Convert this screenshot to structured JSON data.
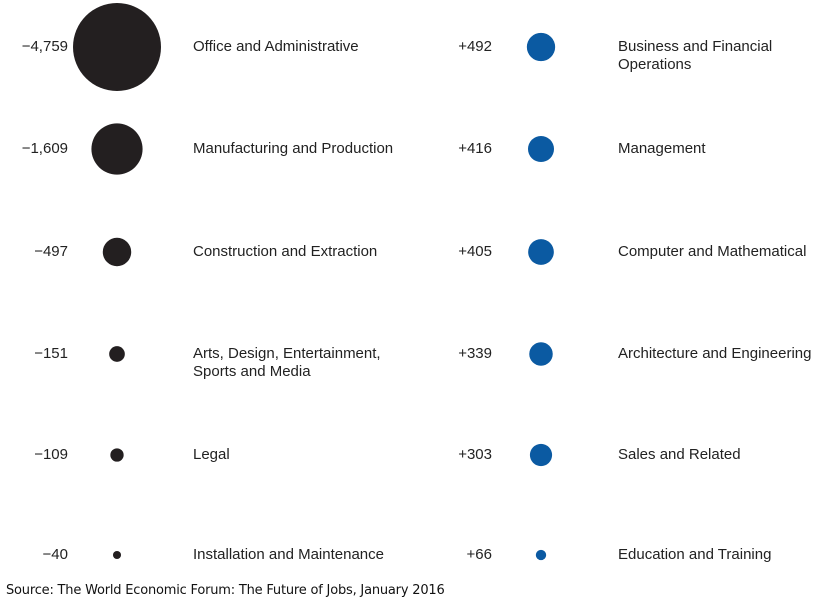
{
  "chart_data": {
    "type": "bubble",
    "colors": {
      "loss": "#231f20",
      "gain": "#0b5aa2"
    },
    "losses": [
      {
        "value": -4759,
        "display": "−4,759",
        "label": "Office and Administrative"
      },
      {
        "value": -1609,
        "display": "−1,609",
        "label": "Manufacturing and Production"
      },
      {
        "value": -497,
        "display": "−497",
        "label": "Construction and Extraction"
      },
      {
        "value": -151,
        "display": "−151",
        "label": "Arts, Design, Entertainment,\nSports and Media"
      },
      {
        "value": -109,
        "display": "−109",
        "label": "Legal"
      },
      {
        "value": -40,
        "display": "−40",
        "label": "Installation and Maintenance"
      }
    ],
    "gains": [
      {
        "value": 492,
        "display": "+492",
        "label": "Business and Financial\nOperations"
      },
      {
        "value": 416,
        "display": "+416",
        "label": "Management"
      },
      {
        "value": 405,
        "display": "+405",
        "label": "Computer and Mathematical"
      },
      {
        "value": 339,
        "display": "+339",
        "label": "Architecture and Engineering"
      },
      {
        "value": 303,
        "display": "+303",
        "label": "Sales and Related"
      },
      {
        "value": 66,
        "display": "+66",
        "label": "Education and Training"
      }
    ]
  },
  "source": "Source: The World Economic Forum: The Future of Jobs, January 2016"
}
